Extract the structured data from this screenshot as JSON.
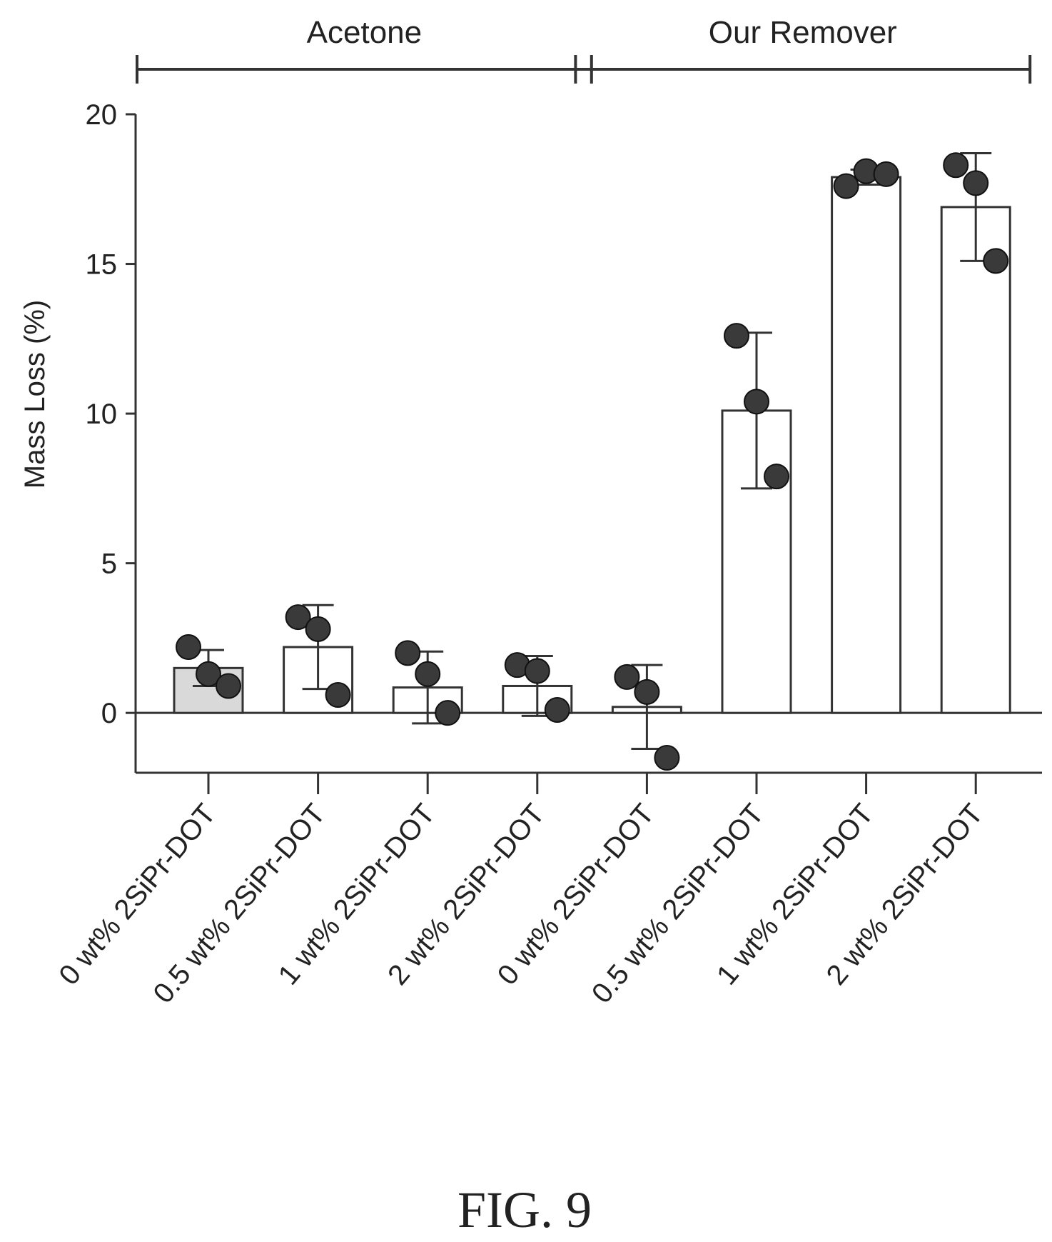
{
  "figure_label": "FIG. 9",
  "chart_data": {
    "type": "bar",
    "ylabel": "Mass Loss (%)",
    "xlabel": "",
    "ylim": [
      -2,
      20
    ],
    "yticks": [
      0,
      5,
      10,
      15,
      20
    ],
    "ytick_labels": [
      "0",
      "5",
      "10",
      "15",
      "20"
    ],
    "groups": [
      {
        "label": "Acetone",
        "categories": [
          0,
          1,
          2,
          3
        ]
      },
      {
        "label": "Our Remover",
        "categories": [
          4,
          5,
          6,
          7
        ]
      }
    ],
    "categories": [
      "0 wt% 2SiPr-DOT",
      "0.5 wt% 2SiPr-DOT",
      "1 wt% 2SiPr-DOT",
      "2 wt% 2SiPr-DOT",
      "0 wt% 2SiPr-DOT",
      "0.5 wt% 2SiPr-DOT",
      "1 wt% 2SiPr-DOT",
      "2 wt% 2SiPr-DOT"
    ],
    "values": [
      1.5,
      2.2,
      0.85,
      0.9,
      0.2,
      10.1,
      17.9,
      16.9
    ],
    "error_sd": [
      0.6,
      1.4,
      1.2,
      1.0,
      1.4,
      2.6,
      0.25,
      1.8
    ],
    "points": [
      [
        2.2,
        1.3,
        0.9
      ],
      [
        3.2,
        2.8,
        0.6
      ],
      [
        2.0,
        1.3,
        0.0
      ],
      [
        1.6,
        1.4,
        0.1
      ],
      [
        1.2,
        0.7,
        -1.5
      ],
      [
        12.6,
        10.4,
        7.9
      ],
      [
        17.6,
        18.1,
        18.0
      ],
      [
        18.3,
        17.7,
        15.1
      ]
    ],
    "bar_fill": [
      "#d9d9d9",
      "#ffffff",
      "#ffffff",
      "#ffffff",
      "#ffffff",
      "#ffffff",
      "#ffffff",
      "#ffffff"
    ],
    "point_color": "#3a3a3a",
    "grid": false
  }
}
